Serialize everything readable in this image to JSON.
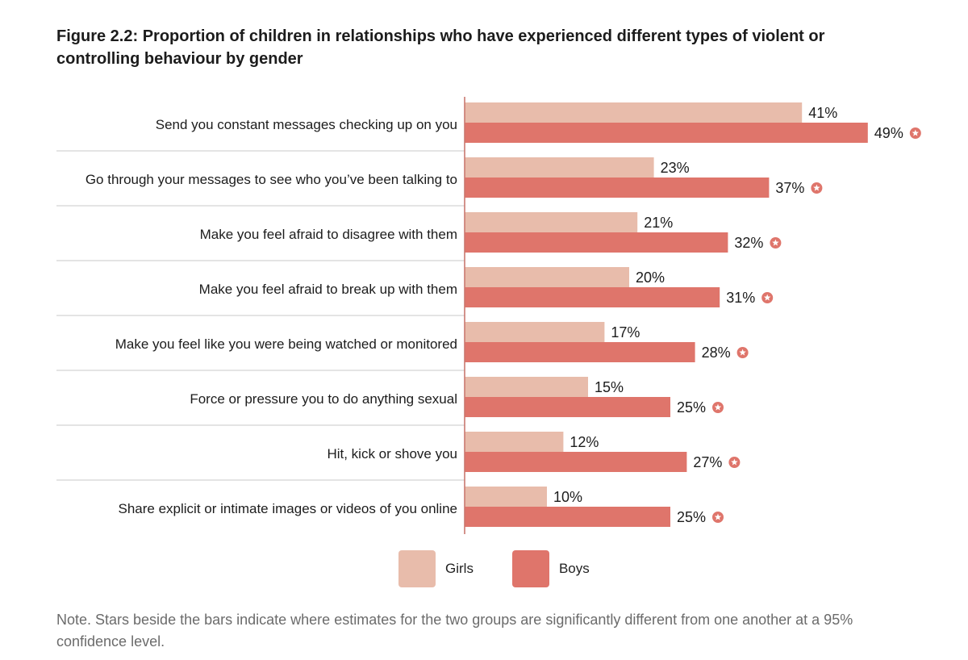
{
  "chart_data": {
    "type": "bar",
    "orientation": "horizontal",
    "title": "Figure 2.2: Proportion of children in relationships who have experienced different types of violent or controlling behaviour by gender",
    "categories": [
      "Send you constant messages checking up on you",
      "Go through your messages to see who you’ve been talking to",
      "Make you feel afraid to disagree with them",
      "Make you feel afraid to break up with them",
      "Make you feel like you were being watched or monitored",
      "Force or pressure you to do anything sexual",
      "Hit, kick or shove you",
      "Share explicit or intimate images or videos of you online"
    ],
    "series": [
      {
        "name": "Girls",
        "color": "#e8bcab",
        "values": [
          41,
          23,
          21,
          20,
          17,
          15,
          12,
          10
        ],
        "labels": [
          "41%",
          "23%",
          "21%",
          "20%",
          "17%",
          "15%",
          "12%",
          "10%"
        ]
      },
      {
        "name": "Boys",
        "color": "#df756b",
        "values": [
          49,
          37,
          32,
          31,
          28,
          25,
          27,
          25
        ],
        "labels": [
          "49%",
          "37%",
          "32%",
          "31%",
          "28%",
          "25%",
          "27%",
          "25%"
        ],
        "significant": [
          true,
          true,
          true,
          true,
          true,
          true,
          true,
          true
        ]
      }
    ],
    "xlim": [
      0,
      55
    ],
    "legend_position": "bottom",
    "star_color": "#df756b",
    "axis_color": "#c9786f",
    "separator_color": "#d4d4d4",
    "note": "Note. Stars beside the bars indicate where estimates for the two groups are significantly different from one another at a 95% confidence level."
  }
}
